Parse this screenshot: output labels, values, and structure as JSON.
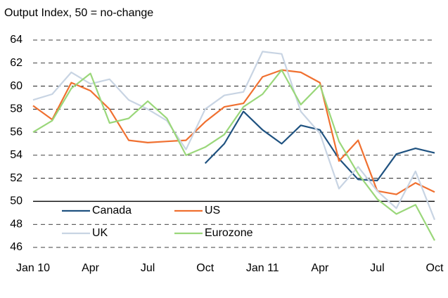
{
  "chart_data": {
    "type": "line",
    "title": "Output Index, 50 = no-change",
    "categories": [
      "Jan 10",
      null,
      null,
      "Apr",
      null,
      null,
      "Jul",
      null,
      null,
      "Oct",
      null,
      null,
      "Jan 11",
      null,
      null,
      "Apr",
      null,
      null,
      "Jul",
      null,
      null,
      "Oct"
    ],
    "series": [
      {
        "name": "Canada",
        "color": "#1f5280",
        "values": [
          null,
          null,
          null,
          null,
          null,
          null,
          null,
          null,
          null,
          53.3,
          55.0,
          57.8,
          56.2,
          55.0,
          56.6,
          56.2,
          53.7,
          51.9,
          51.8,
          54.1,
          54.6,
          54.2
        ]
      },
      {
        "name": "US",
        "color": "#f07030",
        "values": [
          58.3,
          57.1,
          60.3,
          59.6,
          58.0,
          55.3,
          55.1,
          55.2,
          55.3,
          56.9,
          58.2,
          58.5,
          60.8,
          61.4,
          61.2,
          60.3,
          53.5,
          55.3,
          50.9,
          50.6,
          51.6,
          50.8
        ]
      },
      {
        "name": "UK",
        "color": "#c8d4e3",
        "values": [
          58.8,
          59.3,
          61.2,
          60.2,
          60.6,
          58.8,
          58.0,
          57.0,
          54.5,
          58.0,
          59.2,
          59.5,
          63.0,
          62.8,
          57.8,
          55.9,
          51.1,
          53.0,
          50.9,
          49.4,
          52.6,
          48.4
        ]
      },
      {
        "name": "Eurozone",
        "color": "#9ad77a",
        "values": [
          56.0,
          57.0,
          59.8,
          61.1,
          56.8,
          57.2,
          58.7,
          57.2,
          54.0,
          54.7,
          55.8,
          58.2,
          59.3,
          61.4,
          58.4,
          60.1,
          55.2,
          52.4,
          50.2,
          48.9,
          49.7,
          46.6
        ]
      }
    ],
    "ylim": [
      46,
      64
    ],
    "yticks": [
      46,
      48,
      50,
      52,
      54,
      56,
      58,
      60,
      62,
      64
    ],
    "hline": 50,
    "grid": true,
    "legend": "bottom-left"
  }
}
